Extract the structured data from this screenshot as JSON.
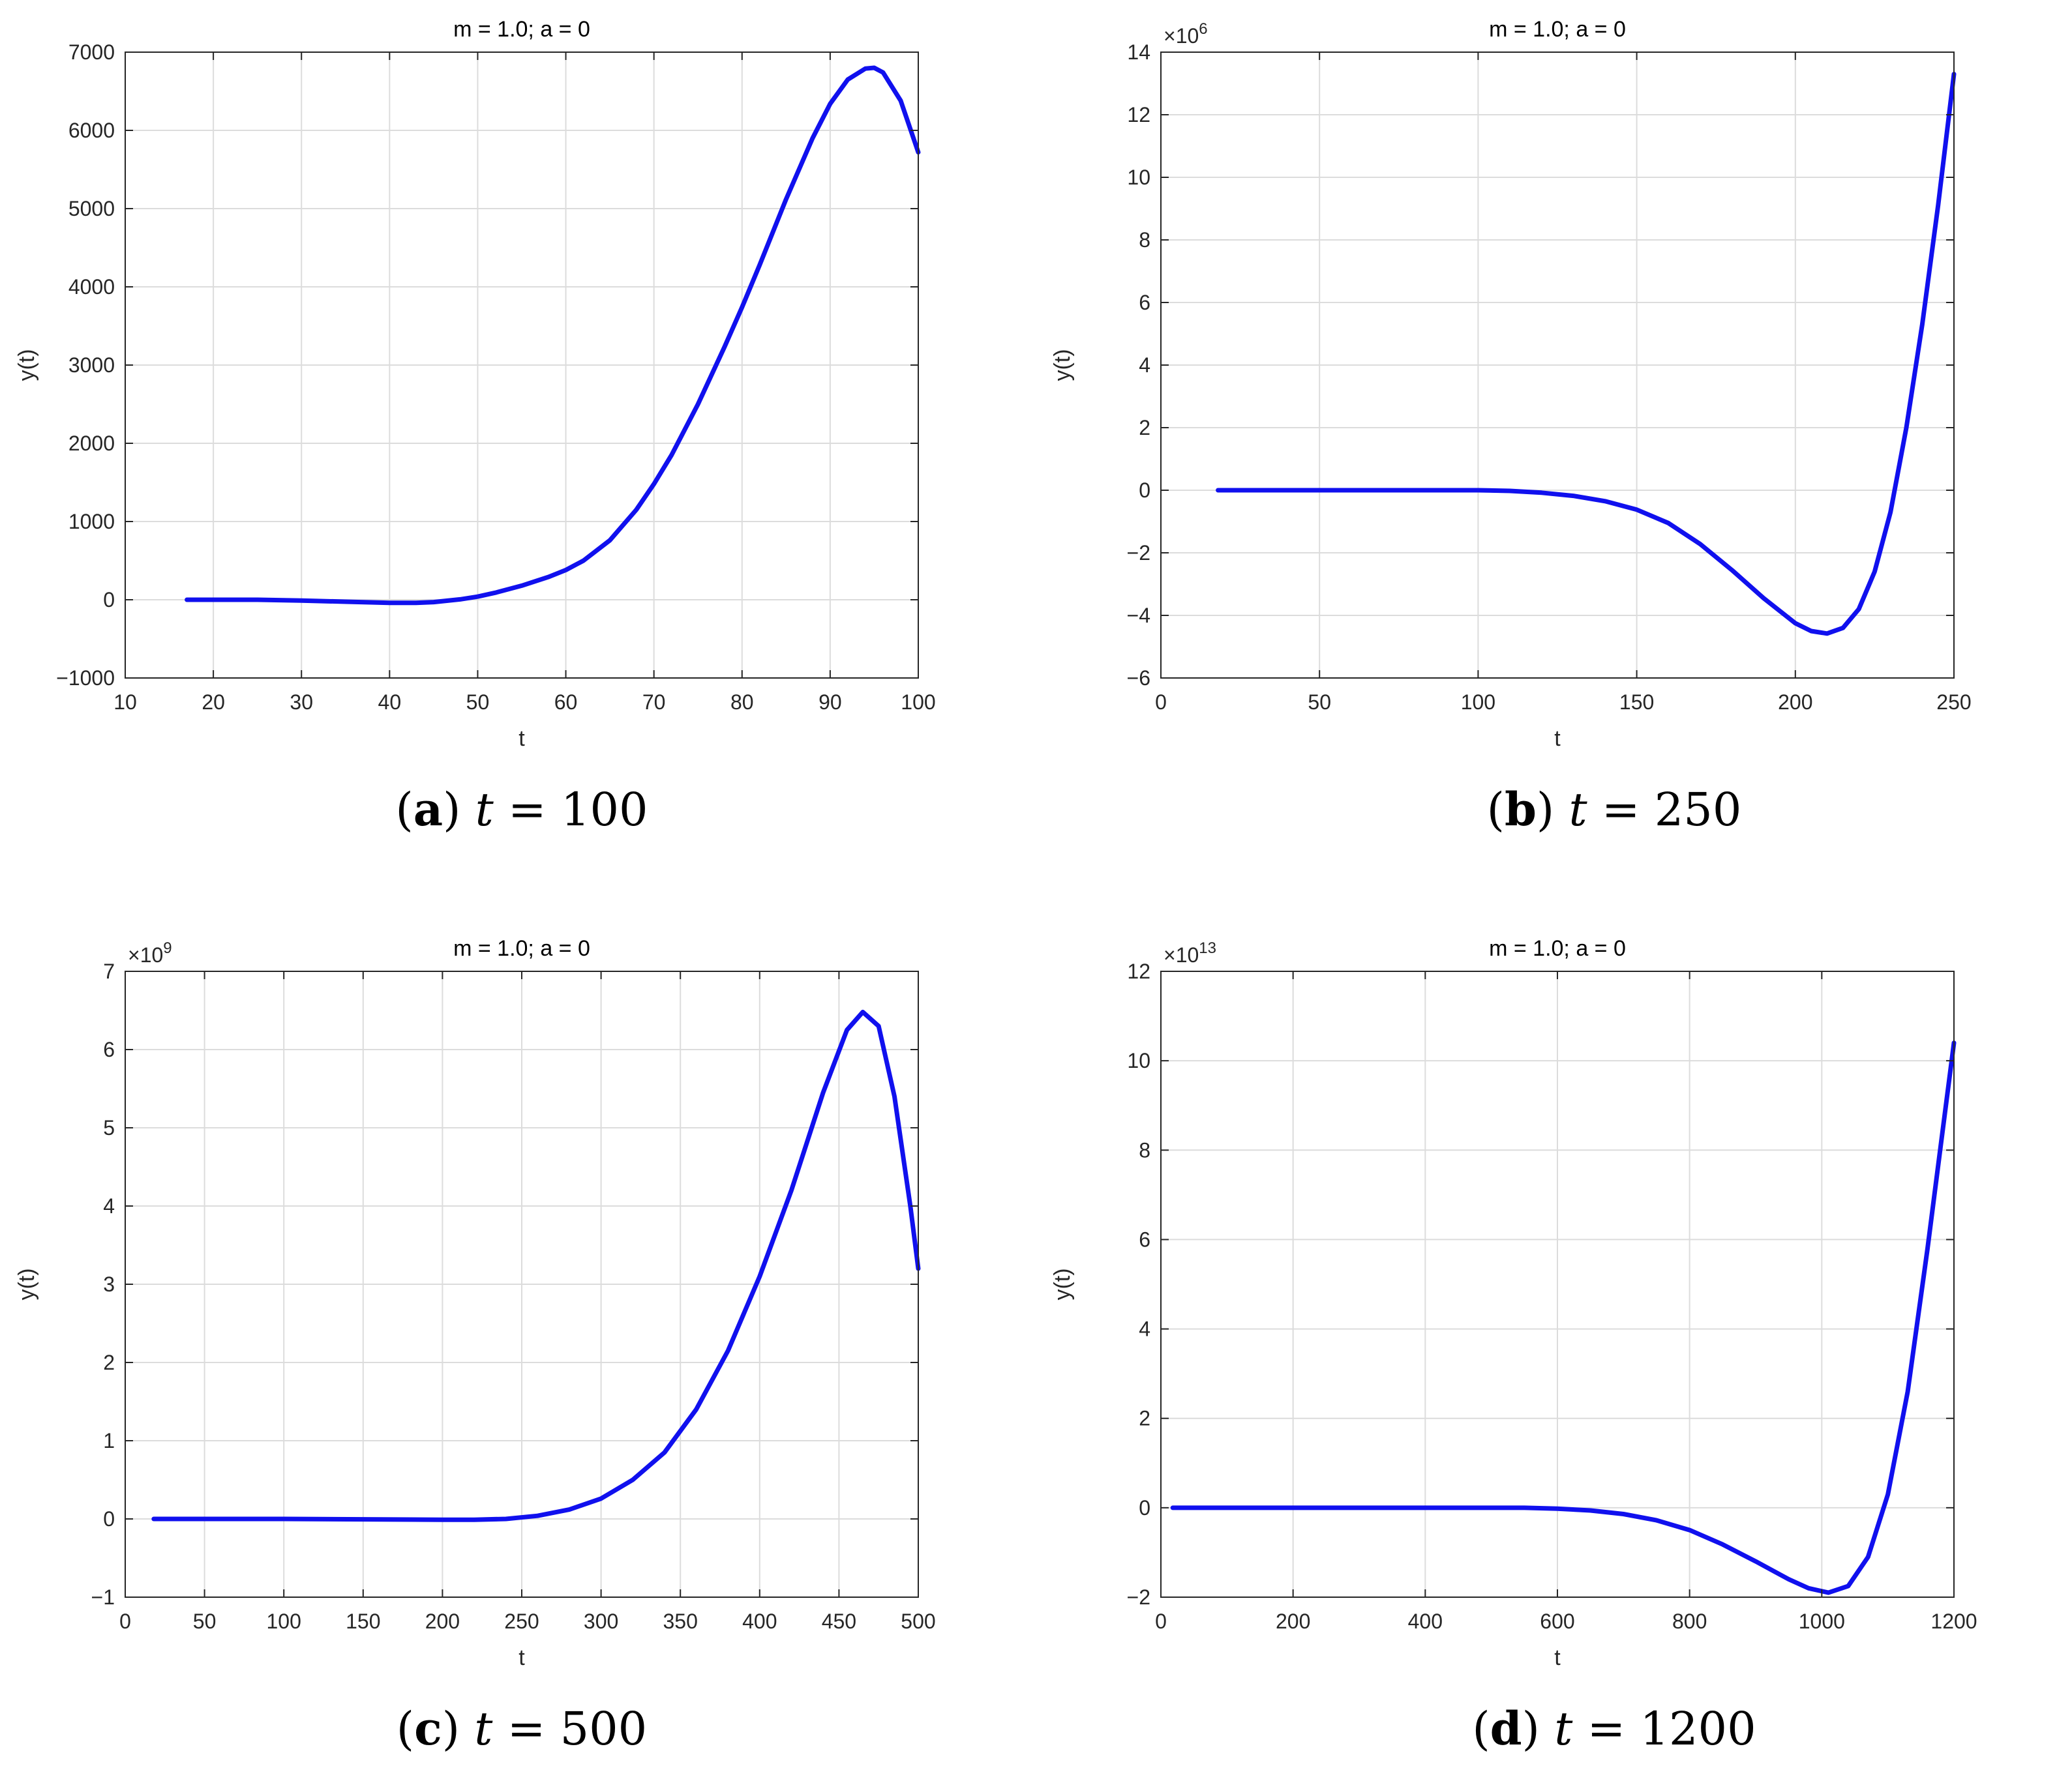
{
  "figure": {
    "panels": [
      {
        "id": "a",
        "label": "a",
        "caption_var": "t",
        "caption_eq": " = ",
        "caption_value": "100"
      },
      {
        "id": "b",
        "label": "b",
        "caption_var": "t",
        "caption_eq": " = ",
        "caption_value": "250"
      },
      {
        "id": "c",
        "label": "c",
        "caption_var": "t",
        "caption_eq": " = ",
        "caption_value": "500"
      },
      {
        "id": "d",
        "label": "d",
        "caption_var": "t",
        "caption_eq": " = ",
        "caption_value": "1200"
      }
    ]
  },
  "colors": {
    "line": "#1010ee",
    "grid": "#dcdcdc",
    "axis": "#262626",
    "text": "#262626"
  },
  "chart_data": [
    {
      "type": "line",
      "title": "m = 1.0; a = 0",
      "xlabel": "t",
      "ylabel": "y(t)",
      "exponent": "",
      "xlim": [
        10,
        100
      ],
      "ylim": [
        -1000,
        7000
      ],
      "xticks": [
        10,
        20,
        30,
        40,
        50,
        60,
        70,
        80,
        90,
        100
      ],
      "xtick_labels": [
        "10",
        "20",
        "30",
        "40",
        "50",
        "60",
        "70",
        "80",
        "90",
        "100"
      ],
      "yticks": [
        -1000,
        0,
        1000,
        2000,
        3000,
        4000,
        5000,
        6000,
        7000
      ],
      "ytick_labels": [
        "−1000",
        "0",
        "1000",
        "2000",
        "3000",
        "4000",
        "5000",
        "6000",
        "7000"
      ],
      "grid": true,
      "series": [
        {
          "name": "y(t)",
          "x": [
            17,
            25,
            30,
            35,
            40,
            43,
            45,
            48,
            50,
            52,
            55,
            58,
            60,
            62,
            65,
            68,
            70,
            72,
            75,
            78,
            80,
            82,
            85,
            88,
            90,
            92,
            94,
            95,
            96,
            98,
            100
          ],
          "y": [
            0,
            0,
            -10,
            -25,
            -40,
            -40,
            -30,
            5,
            40,
            90,
            180,
            290,
            380,
            500,
            760,
            1150,
            1480,
            1850,
            2500,
            3230,
            3740,
            4280,
            5120,
            5900,
            6340,
            6650,
            6790,
            6800,
            6740,
            6380,
            5720
          ]
        }
      ]
    },
    {
      "type": "line",
      "title": "m = 1.0; a = 0",
      "xlabel": "t",
      "ylabel": "y(t)",
      "exponent": "6",
      "xlim": [
        0,
        250
      ],
      "ylim": [
        -6,
        14
      ],
      "xticks": [
        0,
        50,
        100,
        150,
        200,
        250
      ],
      "xtick_labels": [
        "0",
        "50",
        "100",
        "150",
        "200",
        "250"
      ],
      "yticks": [
        -6,
        -4,
        -2,
        0,
        2,
        4,
        6,
        8,
        10,
        12,
        14
      ],
      "ytick_labels": [
        "−6",
        "−4",
        "−2",
        "0",
        "2",
        "4",
        "6",
        "8",
        "10",
        "12",
        "14"
      ],
      "grid": true,
      "series": [
        {
          "name": "y(t)",
          "x": [
            18,
            60,
            100,
            110,
            120,
            130,
            140,
            150,
            160,
            170,
            180,
            190,
            200,
            205,
            210,
            215,
            220,
            225,
            230,
            235,
            240,
            245,
            250
          ],
          "y": [
            0,
            0,
            0,
            -0.02,
            -0.08,
            -0.18,
            -0.35,
            -0.62,
            -1.05,
            -1.72,
            -2.55,
            -3.45,
            -4.25,
            -4.5,
            -4.58,
            -4.4,
            -3.8,
            -2.6,
            -0.7,
            2.0,
            5.3,
            9.1,
            13.3
          ]
        }
      ]
    },
    {
      "type": "line",
      "title": "m = 1.0; a = 0",
      "xlabel": "t",
      "ylabel": "y(t)",
      "exponent": "9",
      "xlim": [
        0,
        500
      ],
      "ylim": [
        -1,
        7
      ],
      "xticks": [
        0,
        50,
        100,
        150,
        200,
        250,
        300,
        350,
        400,
        450,
        500
      ],
      "xtick_labels": [
        "0",
        "50",
        "100",
        "150",
        "200",
        "250",
        "300",
        "350",
        "400",
        "450",
        "500"
      ],
      "yticks": [
        -1,
        0,
        1,
        2,
        3,
        4,
        5,
        6,
        7
      ],
      "ytick_labels": [
        "−1",
        "0",
        "1",
        "2",
        "3",
        "4",
        "5",
        "6",
        "7"
      ],
      "grid": true,
      "series": [
        {
          "name": "y(t)",
          "x": [
            18,
            100,
            200,
            220,
            240,
            260,
            280,
            300,
            320,
            340,
            360,
            380,
            400,
            420,
            440,
            455,
            465,
            475,
            485,
            495,
            500
          ],
          "y": [
            0,
            0,
            -0.01,
            -0.01,
            0.0,
            0.04,
            0.12,
            0.26,
            0.5,
            0.85,
            1.4,
            2.15,
            3.1,
            4.2,
            5.45,
            6.25,
            6.48,
            6.3,
            5.4,
            4.0,
            3.2
          ]
        }
      ]
    },
    {
      "type": "line",
      "title": "m = 1.0; a = 0",
      "xlabel": "t",
      "ylabel": "y(t)",
      "exponent": "13",
      "xlim": [
        0,
        1200
      ],
      "ylim": [
        -2,
        12
      ],
      "xticks": [
        0,
        200,
        400,
        600,
        800,
        1000,
        1200
      ],
      "xtick_labels": [
        "0",
        "200",
        "400",
        "600",
        "800",
        "1000",
        "1200"
      ],
      "yticks": [
        -2,
        0,
        2,
        4,
        6,
        8,
        10,
        12
      ],
      "ytick_labels": [
        "−2",
        "0",
        "2",
        "4",
        "6",
        "8",
        "10",
        "12"
      ],
      "grid": true,
      "series": [
        {
          "name": "y(t)",
          "x": [
            18,
            300,
            550,
            600,
            650,
            700,
            750,
            800,
            850,
            900,
            950,
            980,
            1010,
            1040,
            1070,
            1100,
            1130,
            1160,
            1180,
            1200
          ],
          "y": [
            0,
            0,
            0,
            -0.02,
            -0.06,
            -0.14,
            -0.28,
            -0.5,
            -0.82,
            -1.2,
            -1.6,
            -1.8,
            -1.9,
            -1.75,
            -1.1,
            0.3,
            2.6,
            5.8,
            8.1,
            10.4
          ]
        }
      ]
    }
  ]
}
